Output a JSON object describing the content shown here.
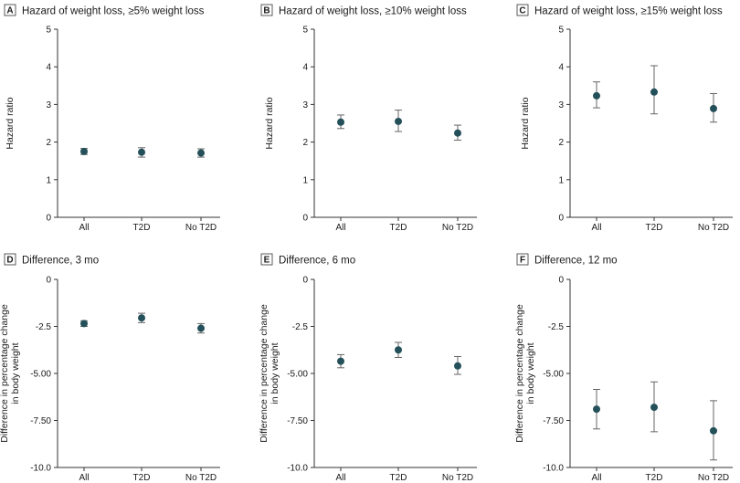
{
  "chart_data": [
    {
      "letter": "A",
      "type": "scatter",
      "title": "Hazard of weight loss, ≥5% weight loss",
      "ylabel": "Hazard ratio",
      "ylabel_lines": [
        "Hazard ratio"
      ],
      "categories": [
        "All",
        "T2D",
        "No T2D"
      ],
      "values": [
        1.75,
        1.73,
        1.71
      ],
      "lower": [
        1.67,
        1.6,
        1.6
      ],
      "upper": [
        1.83,
        1.85,
        1.82
      ],
      "ylim": [
        0,
        5
      ],
      "yticks": [
        0,
        1,
        2,
        3,
        4,
        5
      ],
      "ytick_labels": [
        "0",
        "1",
        "2",
        "3",
        "4",
        "5"
      ]
    },
    {
      "letter": "B",
      "type": "scatter",
      "title": "Hazard of weight loss, ≥10% weight loss",
      "ylabel": "Hazard ratio",
      "ylabel_lines": [
        "Hazard ratio"
      ],
      "categories": [
        "All",
        "T2D",
        "No T2D"
      ],
      "values": [
        2.53,
        2.55,
        2.24
      ],
      "lower": [
        2.36,
        2.28,
        2.05
      ],
      "upper": [
        2.72,
        2.85,
        2.45
      ],
      "ylim": [
        0,
        5
      ],
      "yticks": [
        0,
        1,
        2,
        3,
        4,
        5
      ],
      "ytick_labels": [
        "0",
        "1",
        "2",
        "3",
        "4",
        "5"
      ]
    },
    {
      "letter": "C",
      "type": "scatter",
      "title": "Hazard of weight loss, ≥15% weight loss",
      "ylabel": "Hazard ratio",
      "ylabel_lines": [
        "Hazard ratio"
      ],
      "categories": [
        "All",
        "T2D",
        "No T2D"
      ],
      "values": [
        3.23,
        3.33,
        2.89
      ],
      "lower": [
        2.91,
        2.75,
        2.53
      ],
      "upper": [
        3.6,
        4.03,
        3.29
      ],
      "ylim": [
        0,
        5
      ],
      "yticks": [
        0,
        1,
        2,
        3,
        4,
        5
      ],
      "ytick_labels": [
        "0",
        "1",
        "2",
        "3",
        "4",
        "5"
      ]
    },
    {
      "letter": "D",
      "type": "scatter",
      "title": "Difference, 3 mo",
      "ylabel": "Difference in percentage change in body weight",
      "ylabel_lines": [
        "Difference in percentage change",
        "in body weight"
      ],
      "categories": [
        "All",
        "T2D",
        "No T2D"
      ],
      "values": [
        -2.35,
        -2.05,
        -2.6
      ],
      "lower": [
        -2.5,
        -2.3,
        -2.85
      ],
      "upper": [
        -2.2,
        -1.8,
        -2.35
      ],
      "ylim": [
        -10,
        0
      ],
      "yticks": [
        0,
        -2.5,
        -5,
        -7.5,
        -10
      ],
      "ytick_labels": [
        "0",
        "-2.5",
        "-5.00",
        "-7.50",
        "-10.0"
      ]
    },
    {
      "letter": "E",
      "type": "scatter",
      "title": "Difference, 6 mo",
      "ylabel": "Difference in percentage change in body weight",
      "ylabel_lines": [
        "Difference in percentage change",
        "in body weight"
      ],
      "categories": [
        "All",
        "T2D",
        "No T2D"
      ],
      "values": [
        -4.35,
        -3.75,
        -4.6
      ],
      "lower": [
        -4.7,
        -4.15,
        -5.05
      ],
      "upper": [
        -4.0,
        -3.35,
        -4.1
      ],
      "ylim": [
        -10,
        0
      ],
      "yticks": [
        0,
        -2.5,
        -5,
        -7.5,
        -10
      ],
      "ytick_labels": [
        "0",
        "-2.5",
        "-5.00",
        "-7.50",
        "-10.0"
      ]
    },
    {
      "letter": "F",
      "type": "scatter",
      "title": "Difference, 12 mo",
      "ylabel": "Difference in percentage change in body weight",
      "ylabel_lines": [
        "Difference in percentage change",
        "in body weight"
      ],
      "categories": [
        "All",
        "T2D",
        "No T2D"
      ],
      "values": [
        -6.9,
        -6.8,
        -8.05
      ],
      "lower": [
        -7.95,
        -8.1,
        -9.6
      ],
      "upper": [
        -5.85,
        -5.45,
        -6.45
      ],
      "ylim": [
        -10,
        0
      ],
      "yticks": [
        0,
        -2.5,
        -5,
        -7.5,
        -10
      ],
      "ytick_labels": [
        "0",
        "-2.5",
        "-5.00",
        "-7.50",
        "-10.0"
      ]
    }
  ]
}
